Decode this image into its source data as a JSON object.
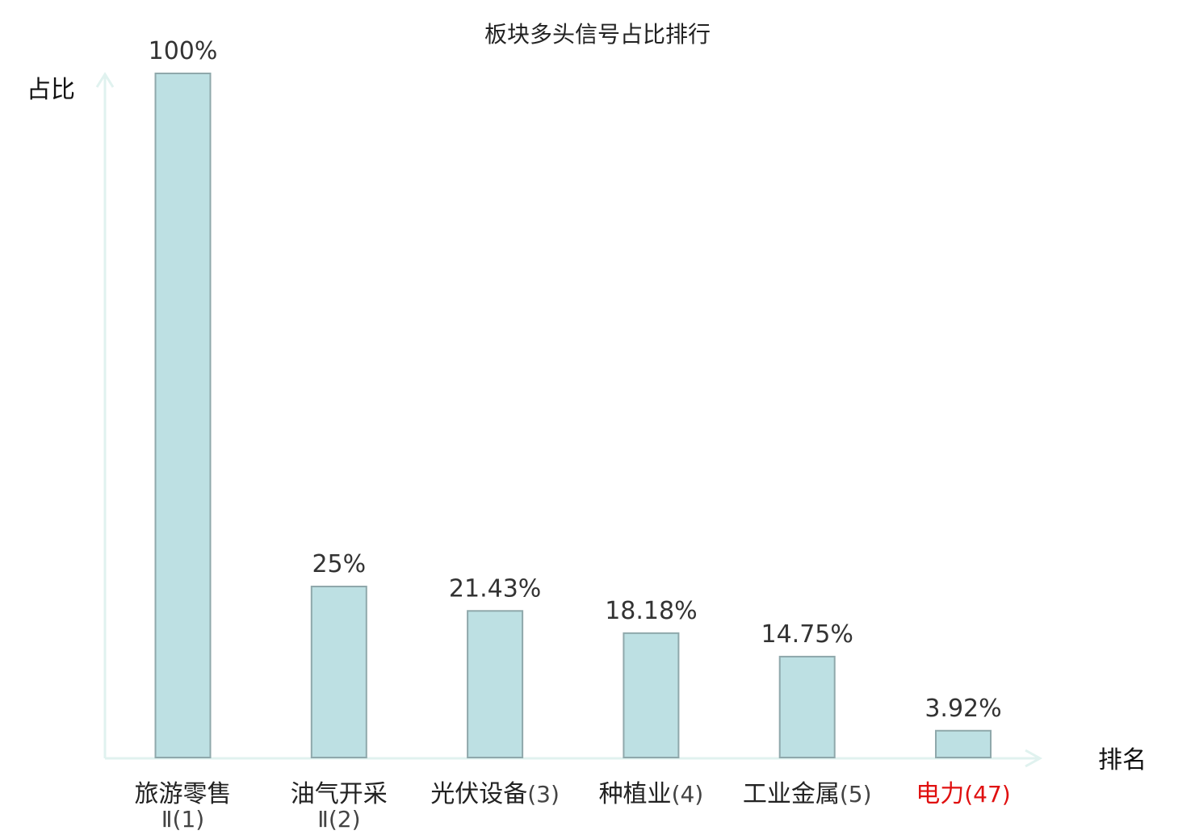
{
  "colors": {
    "bar_fill": "#bde0e3",
    "bar_stroke": "#8fa8ab",
    "axis": "#e0f2ef",
    "text": "#222222",
    "rank_text": "#444444",
    "highlight": "#e01010"
  },
  "chart_data": {
    "type": "bar",
    "title": "板块多头信号占比排行",
    "ylabel": "占比",
    "xlabel": "排名",
    "ylim": [
      0,
      100
    ],
    "grid": false,
    "categories": [
      {
        "name": "旅游零售",
        "rank": "Ⅱ(1)",
        "wrap": true,
        "highlight": false
      },
      {
        "name": "油气开采",
        "rank": "Ⅱ(2)",
        "wrap": true,
        "highlight": false
      },
      {
        "name": "光伏设备",
        "rank": "(3)",
        "wrap": false,
        "highlight": false
      },
      {
        "name": "种植业",
        "rank": "(4)",
        "wrap": false,
        "highlight": false
      },
      {
        "name": "工业金属",
        "rank": "(5)",
        "wrap": false,
        "highlight": false
      },
      {
        "name": "电力",
        "rank": "(47)",
        "wrap": false,
        "highlight": true
      }
    ],
    "values": [
      100,
      25,
      21.43,
      18.18,
      14.75,
      3.92
    ],
    "value_labels": [
      "100%",
      "25%",
      "21.43%",
      "18.18%",
      "14.75%",
      "3.92%"
    ]
  }
}
